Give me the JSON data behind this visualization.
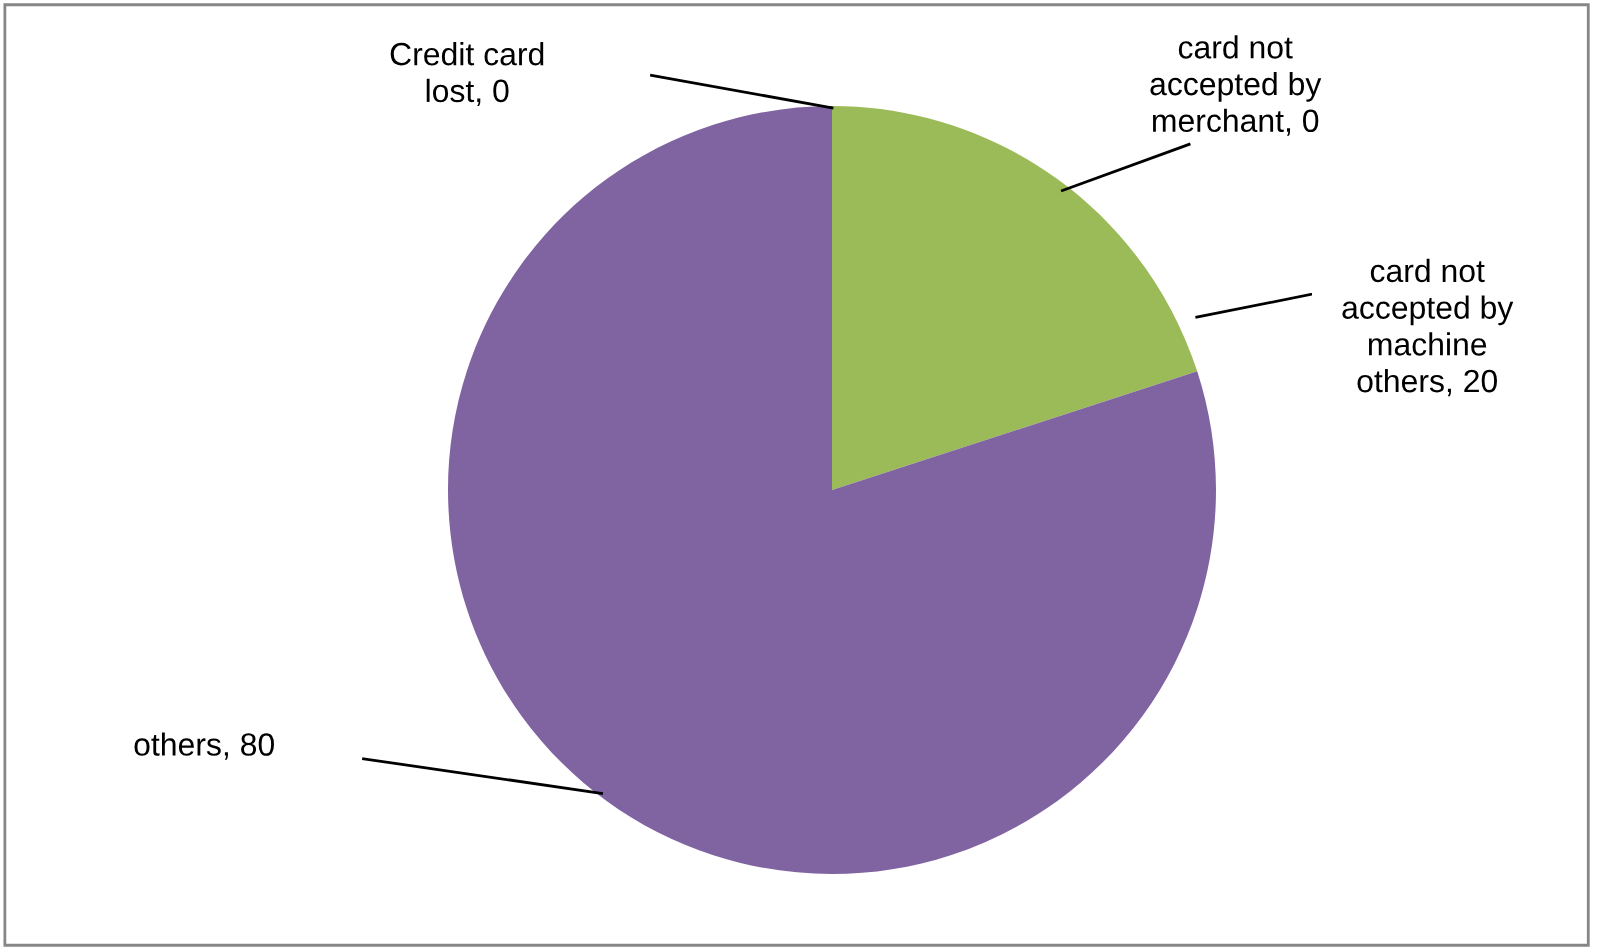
{
  "chart_data": {
    "type": "pie",
    "categories": [
      "Credit card lost, 0",
      "card not accepted by merchant, 0",
      "card not accepted by machine others, 20",
      "others, 80"
    ],
    "values": [
      0,
      0,
      20,
      80
    ],
    "colors": [
      "#4f81bd",
      "#c0504d",
      "#9bbb59",
      "#8064a2"
    ],
    "legend": false
  }
}
